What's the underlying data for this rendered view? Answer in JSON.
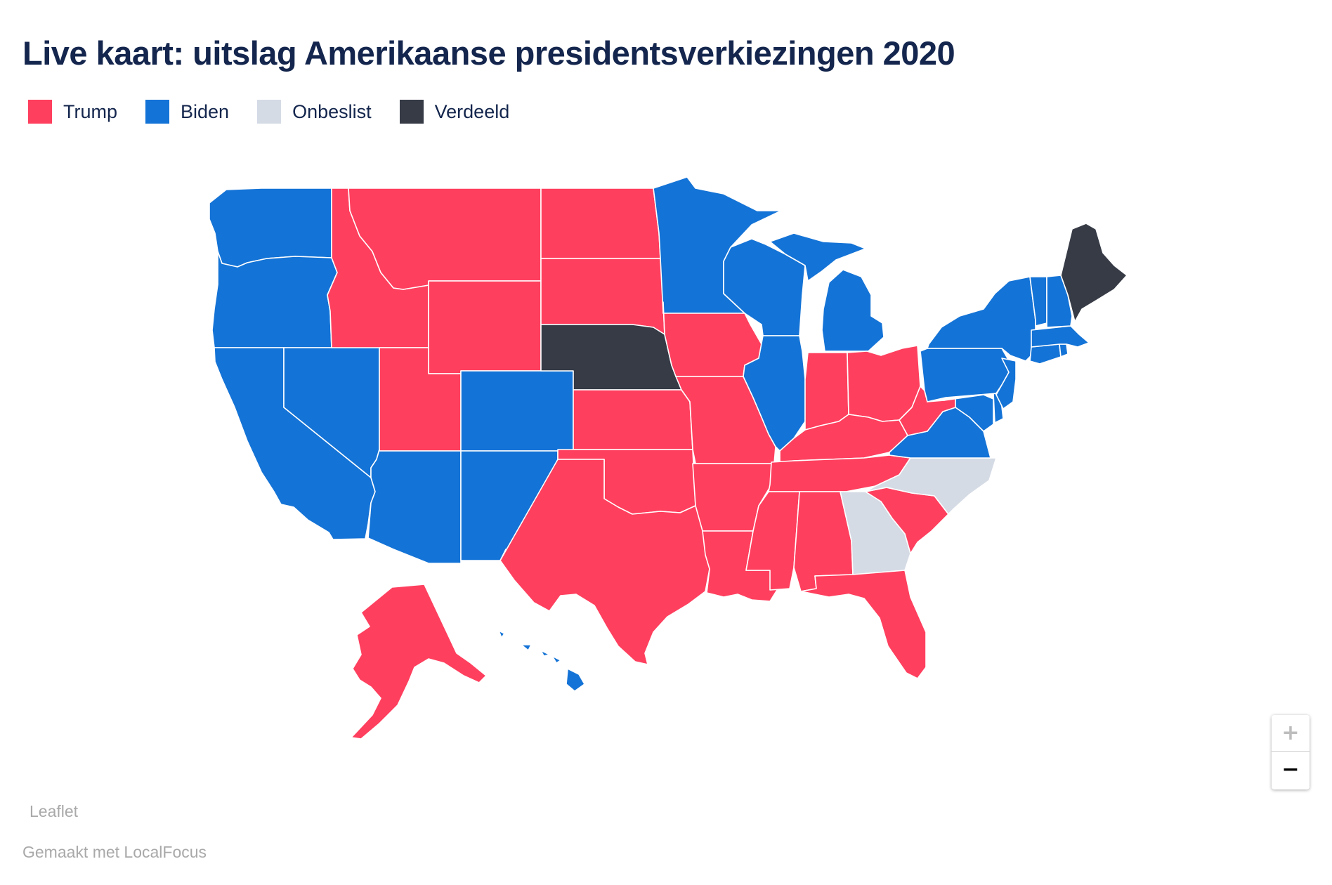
{
  "title": "Live kaart: uitslag Amerikaanse presidentsverkiezingen 2020",
  "legend": [
    {
      "label": "Trump",
      "color": "#ff3f5e"
    },
    {
      "label": "Biden",
      "color": "#1473d6"
    },
    {
      "label": "Onbeslist",
      "color": "#d5dbe5"
    },
    {
      "label": "Verdeeld",
      "color": "#363b46"
    }
  ],
  "colors": {
    "Trump": "#ff3f5e",
    "Biden": "#1473d6",
    "Onbeslist": "#d5dbe5",
    "Verdeeld": "#363b46",
    "border": "#ffffff"
  },
  "states": [
    {
      "abbr": "WA",
      "result": "Biden"
    },
    {
      "abbr": "OR",
      "result": "Biden"
    },
    {
      "abbr": "CA",
      "result": "Biden"
    },
    {
      "abbr": "NV",
      "result": "Biden"
    },
    {
      "abbr": "ID",
      "result": "Trump"
    },
    {
      "abbr": "MT",
      "result": "Trump"
    },
    {
      "abbr": "WY",
      "result": "Trump"
    },
    {
      "abbr": "UT",
      "result": "Trump"
    },
    {
      "abbr": "AZ",
      "result": "Biden"
    },
    {
      "abbr": "CO",
      "result": "Biden"
    },
    {
      "abbr": "NM",
      "result": "Biden"
    },
    {
      "abbr": "ND",
      "result": "Trump"
    },
    {
      "abbr": "SD",
      "result": "Trump"
    },
    {
      "abbr": "NE",
      "result": "Verdeeld"
    },
    {
      "abbr": "KS",
      "result": "Trump"
    },
    {
      "abbr": "OK",
      "result": "Trump"
    },
    {
      "abbr": "TX",
      "result": "Trump"
    },
    {
      "abbr": "MN",
      "result": "Biden"
    },
    {
      "abbr": "IA",
      "result": "Trump"
    },
    {
      "abbr": "MO",
      "result": "Trump"
    },
    {
      "abbr": "AR",
      "result": "Trump"
    },
    {
      "abbr": "LA",
      "result": "Trump"
    },
    {
      "abbr": "WI",
      "result": "Biden"
    },
    {
      "abbr": "IL",
      "result": "Biden"
    },
    {
      "abbr": "MI",
      "result": "Biden"
    },
    {
      "abbr": "IN",
      "result": "Trump"
    },
    {
      "abbr": "OH",
      "result": "Trump"
    },
    {
      "abbr": "KY",
      "result": "Trump"
    },
    {
      "abbr": "TN",
      "result": "Trump"
    },
    {
      "abbr": "MS",
      "result": "Trump"
    },
    {
      "abbr": "AL",
      "result": "Trump"
    },
    {
      "abbr": "GA",
      "result": "Onbeslist"
    },
    {
      "abbr": "FL",
      "result": "Trump"
    },
    {
      "abbr": "SC",
      "result": "Trump"
    },
    {
      "abbr": "NC",
      "result": "Onbeslist"
    },
    {
      "abbr": "VA",
      "result": "Biden"
    },
    {
      "abbr": "WV",
      "result": "Trump"
    },
    {
      "abbr": "MD",
      "result": "Biden"
    },
    {
      "abbr": "DE",
      "result": "Biden"
    },
    {
      "abbr": "PA",
      "result": "Biden"
    },
    {
      "abbr": "NJ",
      "result": "Biden"
    },
    {
      "abbr": "NY",
      "result": "Biden"
    },
    {
      "abbr": "CT",
      "result": "Biden"
    },
    {
      "abbr": "RI",
      "result": "Biden"
    },
    {
      "abbr": "MA",
      "result": "Biden"
    },
    {
      "abbr": "VT",
      "result": "Biden"
    },
    {
      "abbr": "NH",
      "result": "Biden"
    },
    {
      "abbr": "ME",
      "result": "Verdeeld"
    },
    {
      "abbr": "AK",
      "result": "Trump"
    },
    {
      "abbr": "HI",
      "result": "Biden"
    }
  ],
  "zoom": {
    "in": "+",
    "out": "−"
  },
  "attribution": "Leaflet",
  "credit": "Gemaakt met LocalFocus"
}
